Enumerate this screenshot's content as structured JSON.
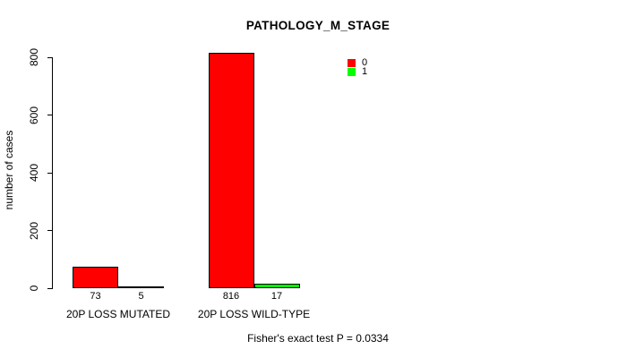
{
  "title": "PATHOLOGY_M_STAGE",
  "y_axis_label": "number of cases",
  "footer": "Fisher's exact test P = 0.0334",
  "colors": {
    "background": "#ffffff",
    "axis": "#000000",
    "series0": "#ff0000",
    "series1": "#00ff00"
  },
  "legend": {
    "items": [
      {
        "label": "0",
        "color": "#ff0000"
      },
      {
        "label": "1",
        "color": "#00ff00"
      }
    ]
  },
  "chart_data": {
    "type": "bar",
    "title": "PATHOLOGY_M_STAGE",
    "xlabel": "",
    "ylabel": "number of cases",
    "categories": [
      "20P LOSS MUTATED",
      "20P LOSS WILD-TYPE"
    ],
    "series": [
      {
        "name": "0",
        "color": "#ff0000",
        "values": [
          73,
          816
        ]
      },
      {
        "name": "1",
        "color": "#00ff00",
        "values": [
          5,
          17
        ]
      }
    ],
    "yticks": [
      0,
      200,
      400,
      600,
      800
    ],
    "ylim": [
      0,
      820
    ],
    "grid": false,
    "legend_position": "top-right",
    "annotation": "Fisher's exact test P = 0.0334"
  }
}
